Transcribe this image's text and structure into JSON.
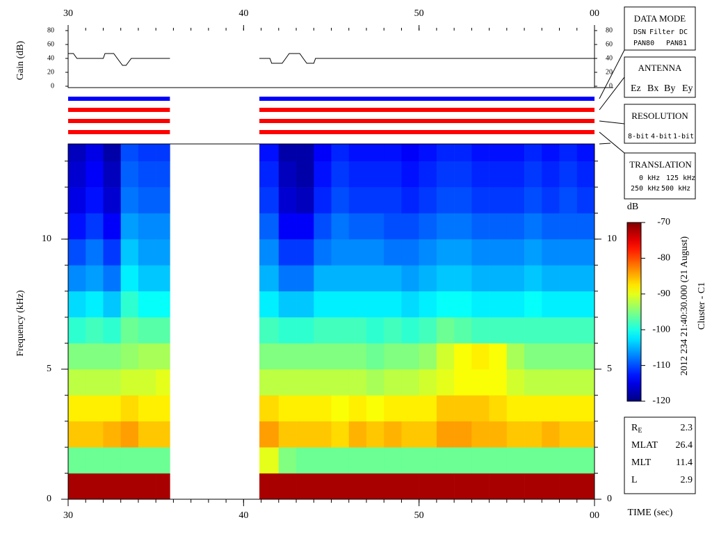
{
  "chart_data": [
    {
      "type": "line",
      "ylabel": "Gain (dB)",
      "x": [
        30,
        30.3,
        30.5,
        32,
        32.1,
        32.6,
        32.8,
        33.1,
        33.3,
        33.6,
        35.8,
        38,
        40.9,
        41.5,
        41.6,
        42.2,
        42.4,
        42.6,
        43.2,
        43.4,
        43.6,
        44,
        44.1,
        60
      ],
      "series": [
        {
          "color": "#000000",
          "values": [
            47,
            47,
            40,
            40,
            47,
            47,
            40,
            30,
            30,
            40,
            40,
            null,
            40,
            40,
            33,
            33,
            40,
            47,
            47,
            40,
            33,
            33,
            40,
            40
          ]
        }
      ],
      "xlim": [
        30,
        60
      ],
      "xticks": [
        30,
        40,
        50,
        {
          "value": 60,
          "label": "00"
        }
      ],
      "ylim": [
        0,
        80
      ],
      "yticks": [
        0,
        20,
        40,
        60,
        80
      ]
    },
    {
      "type": "heatmap",
      "ylabel": "Frequency (kHz)",
      "xlabel": "TIME (sec)",
      "colormap": "jet",
      "xlim": [
        30,
        60
      ],
      "xticks": [
        30,
        40,
        50,
        {
          "value": 60,
          "label": "00"
        }
      ],
      "ylim": [
        0,
        13.66
      ],
      "yticks": [
        0,
        5,
        10
      ],
      "f_edges": [
        0,
        1,
        2,
        3,
        4,
        5,
        6,
        7,
        8,
        9,
        10,
        11,
        12,
        13,
        13.66
      ],
      "segments": [
        {
          "t_edges": [
            30,
            31,
            32,
            33,
            34,
            35,
            35.8
          ],
          "values": [
            [
              -72,
              -96,
              -86,
              -88,
              -92,
              -95,
              -99,
              -103,
              -107,
              -110,
              -113,
              -115,
              -116,
              -117
            ],
            [
              -72,
              -96,
              -86,
              -88,
              -92,
              -95,
              -98,
              -102,
              -106,
              -108,
              -111,
              -113,
              -114,
              -115
            ],
            [
              -72,
              -96,
              -85,
              -88,
              -92,
              -95,
              -99,
              -104,
              -108,
              -111,
              -114,
              -116,
              -117,
              -118
            ],
            [
              -72,
              -96,
              -84,
              -87,
              -91,
              -94,
              -96,
              -99,
              -102,
              -104,
              -106,
              -108,
              -109,
              -110
            ],
            [
              -72,
              -96,
              -86,
              -88,
              -91,
              -93,
              -97,
              -101,
              -104,
              -106,
              -107,
              -109,
              -110,
              -111
            ],
            [
              -72,
              -96,
              -86,
              -88,
              -90,
              -93,
              -97,
              -101,
              -104,
              -106,
              -107,
              -109,
              -110,
              -111
            ]
          ]
        },
        {
          "t_edges": [
            40.9,
            42,
            43,
            44,
            45,
            46,
            47,
            48,
            49,
            50,
            51,
            52,
            53,
            54,
            55,
            56,
            57,
            58,
            59,
            60
          ],
          "values": [
            [
              -72,
              -90,
              -84,
              -87,
              -92,
              -95,
              -98,
              -102,
              -105,
              -107,
              -109,
              -111,
              -112,
              -113
            ],
            [
              -72,
              -95,
              -86,
              -88,
              -92,
              -95,
              -99,
              -104,
              -108,
              -111,
              -114,
              -116,
              -117,
              -118
            ],
            [
              -72,
              -96,
              -86,
              -88,
              -92,
              -95,
              -99,
              -104,
              -108,
              -111,
              -114,
              -117,
              -118,
              -118
            ],
            [
              -72,
              -96,
              -86,
              -88,
              -92,
              -95,
              -98,
              -102,
              -105,
              -108,
              -110,
              -112,
              -113,
              -114
            ],
            [
              -72,
              -96,
              -87,
              -89,
              -92,
              -95,
              -98,
              -102,
              -105,
              -107,
              -108,
              -110,
              -111,
              -112
            ],
            [
              -72,
              -96,
              -85,
              -88,
              -92,
              -95,
              -98,
              -102,
              -105,
              -107,
              -109,
              -111,
              -112,
              -113
            ],
            [
              -72,
              -96,
              -86,
              -89,
              -93,
              -96,
              -99,
              -102,
              -105,
              -107,
              -109,
              -111,
              -112,
              -113
            ],
            [
              -72,
              -96,
              -85,
              -88,
              -92,
              -95,
              -98,
              -102,
              -105,
              -108,
              -110,
              -111,
              -112,
              -113
            ],
            [
              -72,
              -96,
              -86,
              -88,
              -92,
              -95,
              -99,
              -103,
              -106,
              -108,
              -110,
              -112,
              -113,
              -114
            ],
            [
              -72,
              -96,
              -86,
              -88,
              -91,
              -94,
              -98,
              -102,
              -105,
              -107,
              -109,
              -111,
              -112,
              -113
            ],
            [
              -72,
              -96,
              -84,
              -86,
              -90,
              -91,
              -96,
              -101,
              -104,
              -106,
              -108,
              -110,
              -111,
              -112
            ],
            [
              -72,
              -96,
              -84,
              -86,
              -89,
              -89,
              -97,
              -101,
              -104,
              -106,
              -108,
              -110,
              -111,
              -112
            ],
            [
              -72,
              -96,
              -85,
              -86,
              -89,
              -88,
              -98,
              -102,
              -105,
              -107,
              -109,
              -111,
              -112,
              -113
            ],
            [
              -72,
              -96,
              -85,
              -87,
              -89,
              -89,
              -98,
              -102,
              -105,
              -107,
              -109,
              -111,
              -112,
              -113
            ],
            [
              -72,
              -96,
              -86,
              -88,
              -91,
              -93,
              -98,
              -102,
              -105,
              -107,
              -109,
              -111,
              -112,
              -113
            ],
            [
              -72,
              -96,
              -86,
              -88,
              -92,
              -95,
              -98,
              -101,
              -104,
              -106,
              -108,
              -110,
              -111,
              -112
            ],
            [
              -72,
              -96,
              -85,
              -88,
              -92,
              -95,
              -98,
              -102,
              -105,
              -107,
              -109,
              -111,
              -112,
              -113
            ],
            [
              -72,
              -96,
              -86,
              -88,
              -92,
              -95,
              -98,
              -102,
              -105,
              -107,
              -109,
              -110,
              -111,
              -112
            ],
            [
              -72,
              -96,
              -86,
              -88,
              -92,
              -95,
              -98,
              -102,
              -105,
              -107,
              -109,
              -111,
              -112,
              -113
            ]
          ]
        }
      ],
      "colorbar": {
        "label": "dB",
        "lim": [
          -120,
          -70
        ],
        "ticks": [
          -70,
          -80,
          -90,
          -100,
          -110,
          -120
        ]
      }
    }
  ],
  "status_bars": {
    "colors": [
      "#0000ff",
      "#ff0000",
      "#ff0000",
      "#ff0000"
    ]
  },
  "legend": {
    "data_mode": {
      "title": "DATA MODE",
      "items": [
        {
          "text": "DSN",
          "color": "#e00000"
        },
        {
          "text": "Filter",
          "color": "#00c000"
        },
        {
          "text": "DC",
          "color": "#0000ff"
        },
        {
          "text": "PAN80",
          "color": "#000000"
        },
        {
          "text": "PAN81",
          "color": "#00d0d0"
        }
      ]
    },
    "antenna": {
      "title": "ANTENNA",
      "items": [
        {
          "text": "Ez",
          "color": "#e00000"
        },
        {
          "text": "Bx",
          "color": "#00c000"
        },
        {
          "text": "By",
          "color": "#0000ff"
        },
        {
          "text": "Ey",
          "color": "#000000"
        }
      ]
    },
    "resolution": {
      "title": "RESOLUTION",
      "items": [
        {
          "text": "8-bit",
          "color": "#e00000"
        },
        {
          "text": "4-bit",
          "color": "#00c000"
        },
        {
          "text": "1-bit",
          "color": "#0000ff"
        }
      ]
    },
    "translation": {
      "title": "TRANSLATION",
      "items": [
        {
          "text": "0 kHz",
          "color": "#e00000"
        },
        {
          "text": "125 kHz",
          "color": "#00c000"
        },
        {
          "text": "250 kHz",
          "color": "#0000ff"
        },
        {
          "text": "500 kHz",
          "color": "#000000"
        }
      ]
    }
  },
  "ephemeris": [
    {
      "label": "R",
      "sub": "E",
      "value": 2.3
    },
    {
      "label": "MLAT",
      "value": 26.4
    },
    {
      "label": "MLT",
      "value": 11.4
    },
    {
      "label": "L",
      "value": 2.9
    }
  ],
  "date_label": "2012 234 21:40:30.000 (21 August)",
  "spacecraft": "Cluster - C1"
}
